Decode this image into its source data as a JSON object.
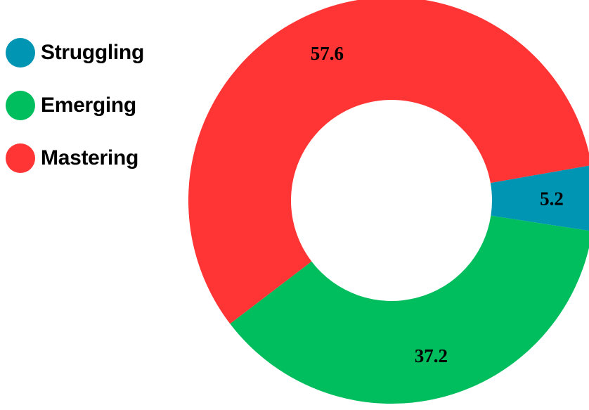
{
  "chart_data": {
    "type": "pie",
    "variant": "donut",
    "title": "",
    "categories": [
      "Struggling",
      "Emerging",
      "Mastering"
    ],
    "values": [
      5.2,
      37.2,
      57.6
    ],
    "data_labels": [
      "5.2",
      "37.2",
      "57.6"
    ],
    "colors": [
      "#0095B3",
      "#00BE5E",
      "#FF3434"
    ],
    "legend": {
      "placement": "top-left",
      "entries": [
        "Struggling",
        "Emerging",
        "Mastering"
      ]
    }
  }
}
